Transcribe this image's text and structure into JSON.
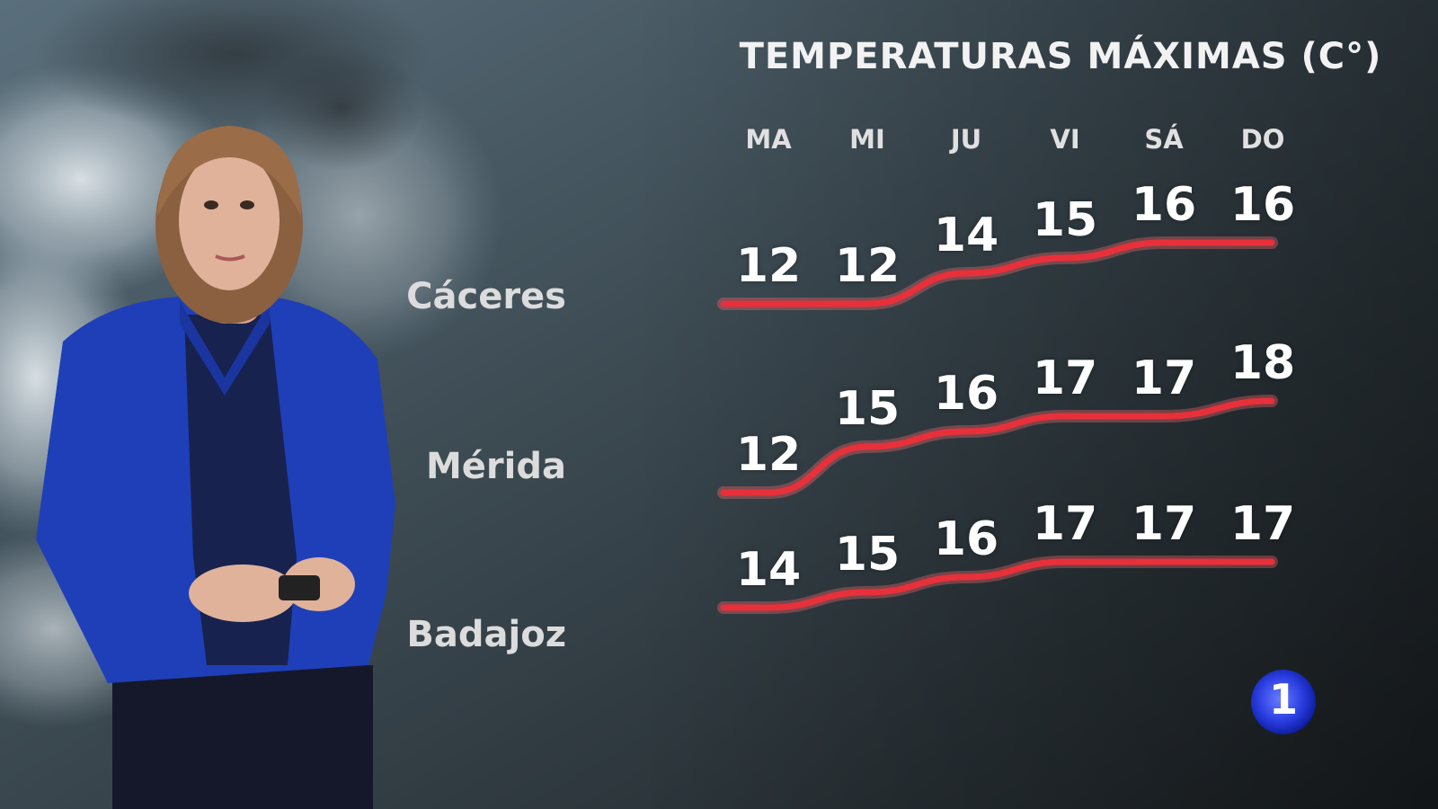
{
  "chart_data": {
    "type": "line",
    "title": "TEMPERATURAS MÁXIMAS (C°)",
    "categories": [
      "MA",
      "MI",
      "JU",
      "VI",
      "SÁ",
      "DO"
    ],
    "series": [
      {
        "name": "Cáceres",
        "values": [
          12,
          12,
          14,
          15,
          16,
          16
        ]
      },
      {
        "name": "Mérida",
        "values": [
          12,
          15,
          16,
          17,
          17,
          18
        ]
      },
      {
        "name": "Badajoz",
        "values": [
          14,
          15,
          16,
          17,
          17,
          17
        ]
      }
    ],
    "line_color": "#e8303a"
  },
  "broadcast": {
    "logo_text": "1",
    "logo_color": "#2a3de0",
    "presenter": "presenter-woman-blue-jacket"
  }
}
